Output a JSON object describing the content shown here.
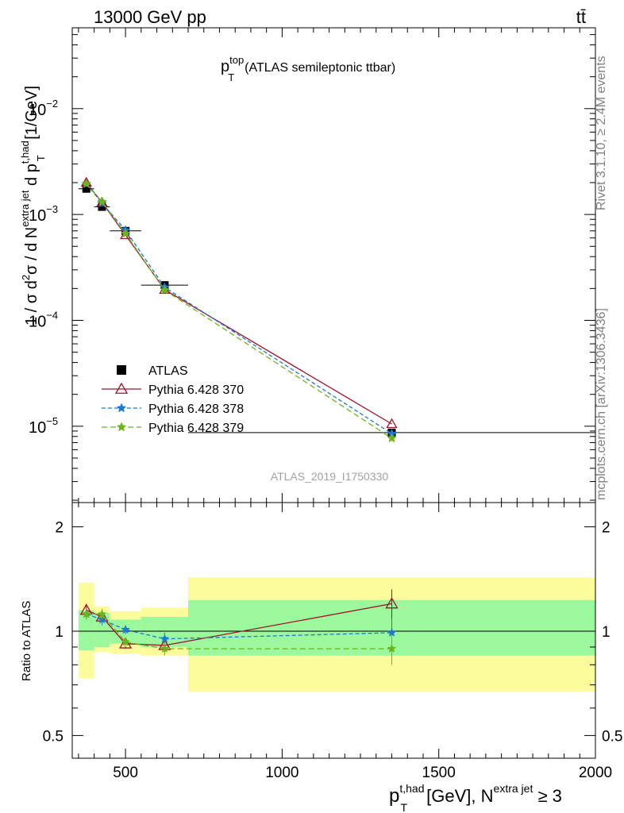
{
  "header": {
    "left": "13000 GeV pp",
    "right": "tt̄"
  },
  "side_labels": {
    "rivet": "Rivet 3.1.10, ≥ 2.4M events",
    "mcplots": "mcplots.cern.ch [arXiv:1306.3436]"
  },
  "main_title": {
    "p": "p",
    "sup": "top",
    "sub": "T",
    "text": "(ATLAS semileptonic ttbar)"
  },
  "watermark": "ATLAS_2019_I1750330",
  "y_axis_label": {
    "a": "1 / σ d",
    "a_sup": "2",
    "b": "σ /  d N",
    "b_sup": "extra jet",
    "c": " d p",
    "c_sup": "t,had",
    "c_sub": "T",
    "d": " [1/GeV]"
  },
  "ratio_y_label": "Ratio to ATLAS",
  "x_axis_label": {
    "p": "p",
    "sup": "t,had",
    "sub": "T",
    "mid": " [GeV], N",
    "sup2": "extra jet",
    "end": " ≥ 3"
  },
  "colors": {
    "data": "#000000",
    "py370": "#a0132c",
    "py378": "#1e78d2",
    "py379": "#6cb418",
    "band_inner": "#9cf89c",
    "band_outer": "#fcfc9c"
  },
  "chart_data": [
    {
      "type": "scatter",
      "panel": "main",
      "y_scale": "log",
      "xlim": [
        330,
        2000
      ],
      "ylim": [
        1.9e-06,
        0.058
      ],
      "x_ticks": [
        500,
        1000,
        1500,
        2000
      ],
      "y_tick_labels": [
        {
          "value": 1e-05,
          "base": "10",
          "exp": "−5"
        },
        {
          "value": 0.0001,
          "base": "10",
          "exp": "−4"
        },
        {
          "value": 0.001,
          "base": "10",
          "exp": "−3"
        },
        {
          "value": 0.01,
          "base": "10",
          "exp": "−2"
        }
      ],
      "legend": "top-left",
      "series": [
        {
          "name": "ATLAS",
          "key": "data",
          "style": "square",
          "x": [
            375,
            425,
            500,
            625,
            1350
          ],
          "y": [
            0.00175,
            0.00118,
            0.0007,
            0.000215,
            8.7e-06
          ],
          "xerr": [
            [
              350,
              400
            ],
            [
              400,
              450
            ],
            [
              450,
              550
            ],
            [
              550,
              700
            ],
            [
              700,
              2000
            ]
          ]
        },
        {
          "name": "Pythia 6.428 370",
          "key": "py370",
          "style": "triangle",
          "x": [
            375,
            425,
            500,
            625,
            1350
          ],
          "y": [
            0.002,
            0.0013,
            0.00064,
            0.000195,
            1.05e-05
          ]
        },
        {
          "name": "Pythia 6.428 378",
          "key": "py378",
          "style": "star",
          "x": [
            375,
            425,
            500,
            625,
            1350
          ],
          "y": [
            0.00195,
            0.00128,
            0.00071,
            0.000205,
            8.5e-06
          ]
        },
        {
          "name": "Pythia 6.428 379",
          "key": "py379",
          "style": "star",
          "x": [
            375,
            425,
            500,
            625,
            1350
          ],
          "y": [
            0.00195,
            0.00132,
            0.00066,
            0.000193,
            7.7e-06
          ]
        }
      ]
    },
    {
      "type": "scatter",
      "panel": "ratio",
      "y_scale": "log",
      "xlim": [
        330,
        2000
      ],
      "ylim": [
        0.43,
        2.35
      ],
      "x_ticks": [
        500,
        1000,
        1500,
        2000
      ],
      "x_tick_labels": [
        "500",
        "1000",
        "1500",
        "2000"
      ],
      "y_tick_labels": [
        {
          "value": 0.5,
          "label": "0.5"
        },
        {
          "value": 1,
          "label": "1"
        },
        {
          "value": 2,
          "label": "2"
        }
      ],
      "bands": [
        {
          "x": [
            350,
            400
          ],
          "inner": [
            0.88,
            1.15
          ],
          "outer": [
            0.73,
            1.38
          ]
        },
        {
          "x": [
            400,
            450
          ],
          "inner": [
            0.9,
            1.13
          ],
          "outer": [
            0.87,
            1.18
          ]
        },
        {
          "x": [
            450,
            550
          ],
          "inner": [
            0.92,
            1.08
          ],
          "outer": [
            0.86,
            1.14
          ]
        },
        {
          "x": [
            550,
            700
          ],
          "inner": [
            0.9,
            1.1
          ],
          "outer": [
            0.85,
            1.17
          ]
        },
        {
          "x": [
            700,
            2000
          ],
          "inner": [
            0.85,
            1.23
          ],
          "outer": [
            0.67,
            1.43
          ]
        }
      ],
      "series": [
        {
          "name": "Pythia 6.428 370",
          "key": "py370",
          "style": "triangle",
          "x": [
            375,
            425,
            500,
            625,
            1350
          ],
          "y": [
            1.15,
            1.1,
            0.92,
            0.91,
            1.2
          ],
          "yerr": [
            0.04,
            0.04,
            0.03,
            0.04,
            0.12
          ]
        },
        {
          "name": "Pythia 6.428 378",
          "key": "py378",
          "style": "star",
          "x": [
            375,
            425,
            500,
            625,
            1350
          ],
          "y": [
            1.12,
            1.08,
            1.01,
            0.95,
            0.99
          ],
          "yerr": [
            0.04,
            0.04,
            0.03,
            0.04,
            0.1
          ]
        },
        {
          "name": "Pythia 6.428 379",
          "key": "py379",
          "style": "star",
          "x": [
            375,
            425,
            500,
            625,
            1350
          ],
          "y": [
            1.12,
            1.12,
            0.93,
            0.89,
            0.89
          ],
          "yerr": [
            0.04,
            0.04,
            0.03,
            0.04,
            0.09
          ]
        }
      ]
    }
  ]
}
